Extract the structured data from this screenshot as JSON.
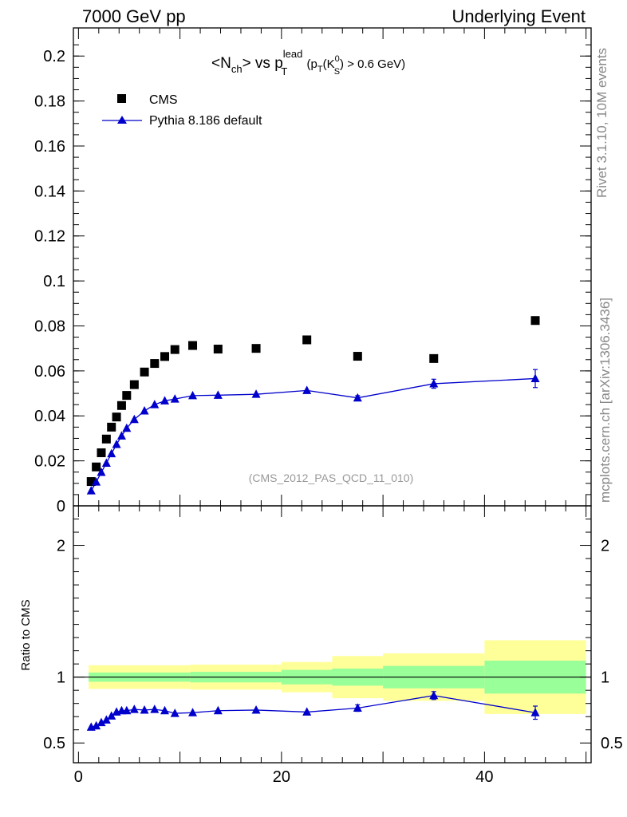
{
  "header": {
    "left": "7000 GeV pp",
    "right": "Underlying Event"
  },
  "side_labels": {
    "top": "Rivet 3.1.10,  10M events",
    "bottom": "mcplots.cern.ch [arXiv:1306.3436]"
  },
  "colors": {
    "mc": "#0000cc",
    "band_inner": "#99ff99",
    "band_outer": "#ffff99",
    "data": "#000000"
  },
  "chart_data": [
    {
      "type": "scatter",
      "title_parts": {
        "pre": "<N",
        "sub1": "ch",
        "mid": "> vs p",
        "sup_lead": "lead",
        "sub_T": "T",
        "paren_open": " (p",
        "sub_T2": "T",
        "k": "(K",
        "sup_0": "0",
        "sub_S": "S",
        "tail": ") > 0.6 GeV)"
      },
      "analysis_label": "(CMS_2012_PAS_QCD_11_010)",
      "ylim": [
        0,
        0.2125
      ],
      "xlim": [
        -0.5,
        50.5
      ],
      "y_ticks": [
        "0",
        "0.02",
        "0.04",
        "0.06",
        "0.08",
        "0.1",
        "0.12",
        "0.14",
        "0.16",
        "0.18",
        "0.2"
      ],
      "y_tick_values": [
        0,
        0.02,
        0.04,
        0.06,
        0.08,
        0.1,
        0.12,
        0.14,
        0.16,
        0.18,
        0.2
      ],
      "legend": {
        "position": "top-left",
        "entries": [
          "CMS",
          "Pythia 8.186 default"
        ]
      },
      "series": [
        {
          "name": "CMS",
          "marker": "square",
          "x": [
            1.25,
            1.75,
            2.25,
            2.75,
            3.25,
            3.75,
            4.25,
            4.75,
            5.5,
            6.5,
            7.5,
            8.5,
            9.5,
            11.25,
            13.75,
            17.5,
            22.5,
            27.5,
            35,
            45
          ],
          "y": [
            0.0108,
            0.0173,
            0.0236,
            0.0297,
            0.035,
            0.0395,
            0.0446,
            0.0491,
            0.0539,
            0.0595,
            0.0633,
            0.0664,
            0.0695,
            0.0713,
            0.0697,
            0.07,
            0.0738,
            0.0665,
            0.0655,
            0.0824
          ]
        },
        {
          "name": "Pythia 8.186 default",
          "marker": "triangle",
          "x": [
            1.25,
            1.75,
            2.25,
            2.75,
            3.25,
            3.75,
            4.25,
            4.75,
            5.5,
            6.5,
            7.5,
            8.5,
            9.5,
            11.25,
            13.75,
            17.5,
            22.5,
            27.5,
            35,
            45
          ],
          "y": [
            0.0067,
            0.0106,
            0.0149,
            0.019,
            0.0232,
            0.0273,
            0.0311,
            0.0345,
            0.0384,
            0.0422,
            0.045,
            0.0467,
            0.0475,
            0.049,
            0.0492,
            0.0496,
            0.0513,
            0.048,
            0.0543,
            0.0566
          ],
          "yerr": [
            0,
            0,
            0,
            0,
            0,
            0,
            0,
            0,
            0,
            0,
            0,
            0,
            0,
            0,
            0,
            0,
            0,
            0.001,
            0.002,
            0.004
          ]
        }
      ]
    },
    {
      "type": "scatter",
      "ylabel": "Ratio to CMS",
      "ylim": [
        0.35,
        2.3
      ],
      "xlim": [
        -0.5,
        50.5
      ],
      "x_ticks": [
        "0",
        "20",
        "40"
      ],
      "x_tick_values": [
        0,
        20,
        40
      ],
      "y_ticks": [
        "0.5",
        "1",
        "2"
      ],
      "y_tick_values": [
        0.5,
        1,
        2
      ],
      "reference_line": 1,
      "bands": [
        {
          "xlo": 1,
          "xhi": 11,
          "inner": [
            0.965,
            1.035
          ],
          "outer": [
            0.91,
            1.09
          ]
        },
        {
          "xlo": 11,
          "xhi": 20,
          "inner": [
            0.96,
            1.04
          ],
          "outer": [
            0.905,
            1.095
          ]
        },
        {
          "xlo": 20,
          "xhi": 25,
          "inner": [
            0.945,
            1.055
          ],
          "outer": [
            0.885,
            1.115
          ]
        },
        {
          "xlo": 25,
          "xhi": 30,
          "inner": [
            0.935,
            1.065
          ],
          "outer": [
            0.84,
            1.16
          ]
        },
        {
          "xlo": 30,
          "xhi": 40,
          "inner": [
            0.915,
            1.085
          ],
          "outer": [
            0.82,
            1.18
          ]
        },
        {
          "xlo": 40,
          "xhi": 50,
          "inner": [
            0.875,
            1.125
          ],
          "outer": [
            0.72,
            1.28
          ]
        }
      ],
      "series": [
        {
          "name": "Pythia 8.186 default / CMS",
          "marker": "triangle",
          "x": [
            1.25,
            1.75,
            2.25,
            2.75,
            3.25,
            3.75,
            4.25,
            4.75,
            5.5,
            6.5,
            7.5,
            8.5,
            9.5,
            11.25,
            13.75,
            17.5,
            22.5,
            27.5,
            35,
            45
          ],
          "y": [
            0.62,
            0.63,
            0.655,
            0.675,
            0.705,
            0.735,
            0.745,
            0.745,
            0.755,
            0.75,
            0.755,
            0.745,
            0.725,
            0.73,
            0.745,
            0.75,
            0.735,
            0.765,
            0.86,
            0.73
          ],
          "yerr": [
            0,
            0,
            0,
            0,
            0,
            0,
            0,
            0,
            0,
            0,
            0,
            0,
            0,
            0,
            0,
            0,
            0,
            0.025,
            0.03,
            0.05
          ]
        }
      ]
    }
  ]
}
